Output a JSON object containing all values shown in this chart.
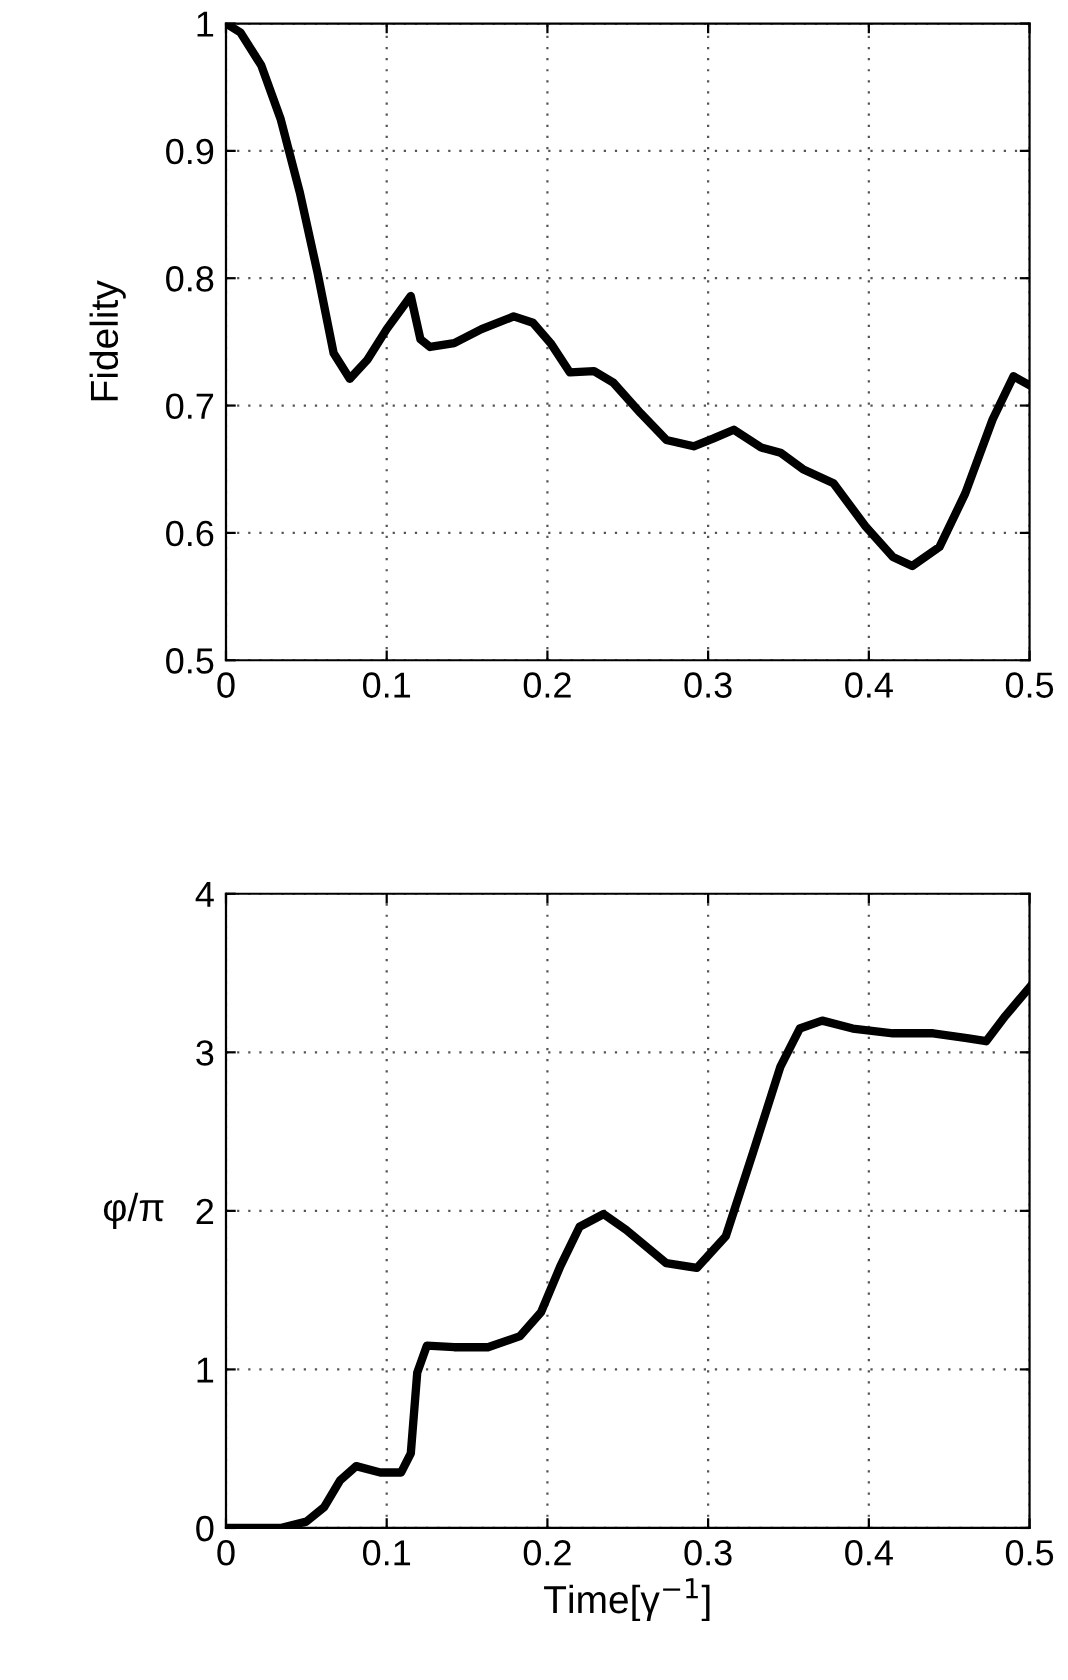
{
  "chart_data": [
    {
      "type": "line",
      "ylabel": "Fidelity",
      "xlim": [
        0,
        0.5
      ],
      "ylim": [
        0.5,
        1
      ],
      "xticks": [
        0,
        0.1,
        0.2,
        0.3,
        0.4,
        0.5
      ],
      "yticks": [
        0.5,
        0.6,
        0.7,
        0.8,
        0.9,
        1
      ],
      "grid": true,
      "line_style": "solid",
      "marker": "none",
      "series": [
        {
          "color": "#000000",
          "x": [
            0,
            0.009,
            0.022,
            0.034,
            0.046,
            0.057,
            0.067,
            0.077,
            0.088,
            0.1,
            0.115,
            0.121,
            0.127,
            0.142,
            0.159,
            0.179,
            0.191,
            0.202,
            0.214,
            0.229,
            0.241,
            0.258,
            0.274,
            0.291,
            0.303,
            0.316,
            0.333,
            0.345,
            0.359,
            0.378,
            0.398,
            0.415,
            0.427,
            0.444,
            0.46,
            0.477,
            0.49,
            0.5
          ],
          "values": [
            1.0,
            0.993,
            0.967,
            0.925,
            0.867,
            0.804,
            0.741,
            0.721,
            0.736,
            0.76,
            0.786,
            0.752,
            0.746,
            0.749,
            0.76,
            0.77,
            0.765,
            0.749,
            0.726,
            0.727,
            0.718,
            0.694,
            0.673,
            0.668,
            0.674,
            0.681,
            0.667,
            0.663,
            0.65,
            0.639,
            0.605,
            0.581,
            0.574,
            0.589,
            0.631,
            0.689,
            0.723,
            0.716
          ]
        }
      ]
    },
    {
      "type": "line",
      "ylabel": "φ/π",
      "xlabel": "Time[γ$^{−1}$]",
      "xlim": [
        0,
        0.5
      ],
      "ylim": [
        0,
        4
      ],
      "xticks": [
        0,
        0.1,
        0.2,
        0.3,
        0.4,
        0.5
      ],
      "yticks": [
        0,
        1,
        2,
        3,
        4
      ],
      "grid": true,
      "line_style": "solid",
      "marker": "none",
      "series": [
        {
          "color": "#000000",
          "x": [
            0,
            0.034,
            0.05,
            0.061,
            0.071,
            0.081,
            0.096,
            0.109,
            0.115,
            0.119,
            0.125,
            0.142,
            0.163,
            0.183,
            0.196,
            0.208,
            0.22,
            0.235,
            0.249,
            0.274,
            0.293,
            0.311,
            0.328,
            0.345,
            0.357,
            0.371,
            0.39,
            0.415,
            0.44,
            0.461,
            0.473,
            0.485,
            0.5
          ],
          "values": [
            0,
            0,
            0.04,
            0.13,
            0.3,
            0.39,
            0.35,
            0.35,
            0.47,
            0.98,
            1.15,
            1.14,
            1.14,
            1.21,
            1.36,
            1.65,
            1.9,
            1.98,
            1.88,
            1.67,
            1.64,
            1.84,
            2.37,
            2.91,
            3.15,
            3.2,
            3.15,
            3.12,
            3.12,
            3.09,
            3.07,
            3.23,
            3.41
          ]
        }
      ]
    }
  ]
}
